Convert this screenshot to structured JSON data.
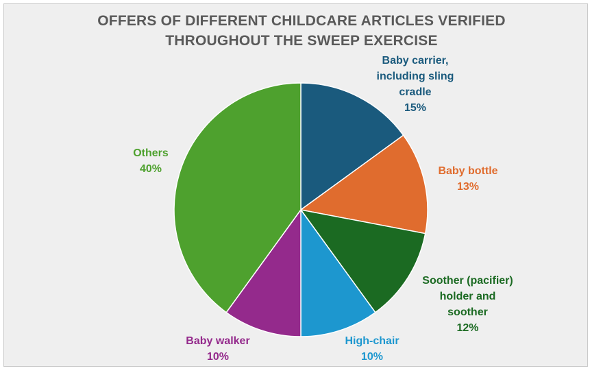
{
  "chart_data": {
    "type": "pie",
    "title_lines": [
      "OFFERS OF DIFFERENT CHILDCARE ARTICLES VERIFIED",
      "THROUGHOUT THE SWEEP EXERCISE"
    ],
    "slices": [
      {
        "label_lines": [
          "Baby carrier,",
          "including sling",
          "cradle"
        ],
        "value": 15,
        "value_label": "15%",
        "color": "#1a5a7d"
      },
      {
        "label_lines": [
          "Baby bottle"
        ],
        "value": 13,
        "value_label": "13%",
        "color": "#e06c2e"
      },
      {
        "label_lines": [
          "Soother (pacifier)",
          "holder and",
          "soother"
        ],
        "value": 12,
        "value_label": "12%",
        "color": "#1b6a22"
      },
      {
        "label_lines": [
          "High-chair"
        ],
        "value": 10,
        "value_label": "10%",
        "color": "#1d97cf"
      },
      {
        "label_lines": [
          "Baby walker"
        ],
        "value": 10,
        "value_label": "10%",
        "color": "#942a8c"
      },
      {
        "label_lines": [
          "Others"
        ],
        "value": 40,
        "value_label": "40%",
        "color": "#4ea12e"
      }
    ]
  }
}
